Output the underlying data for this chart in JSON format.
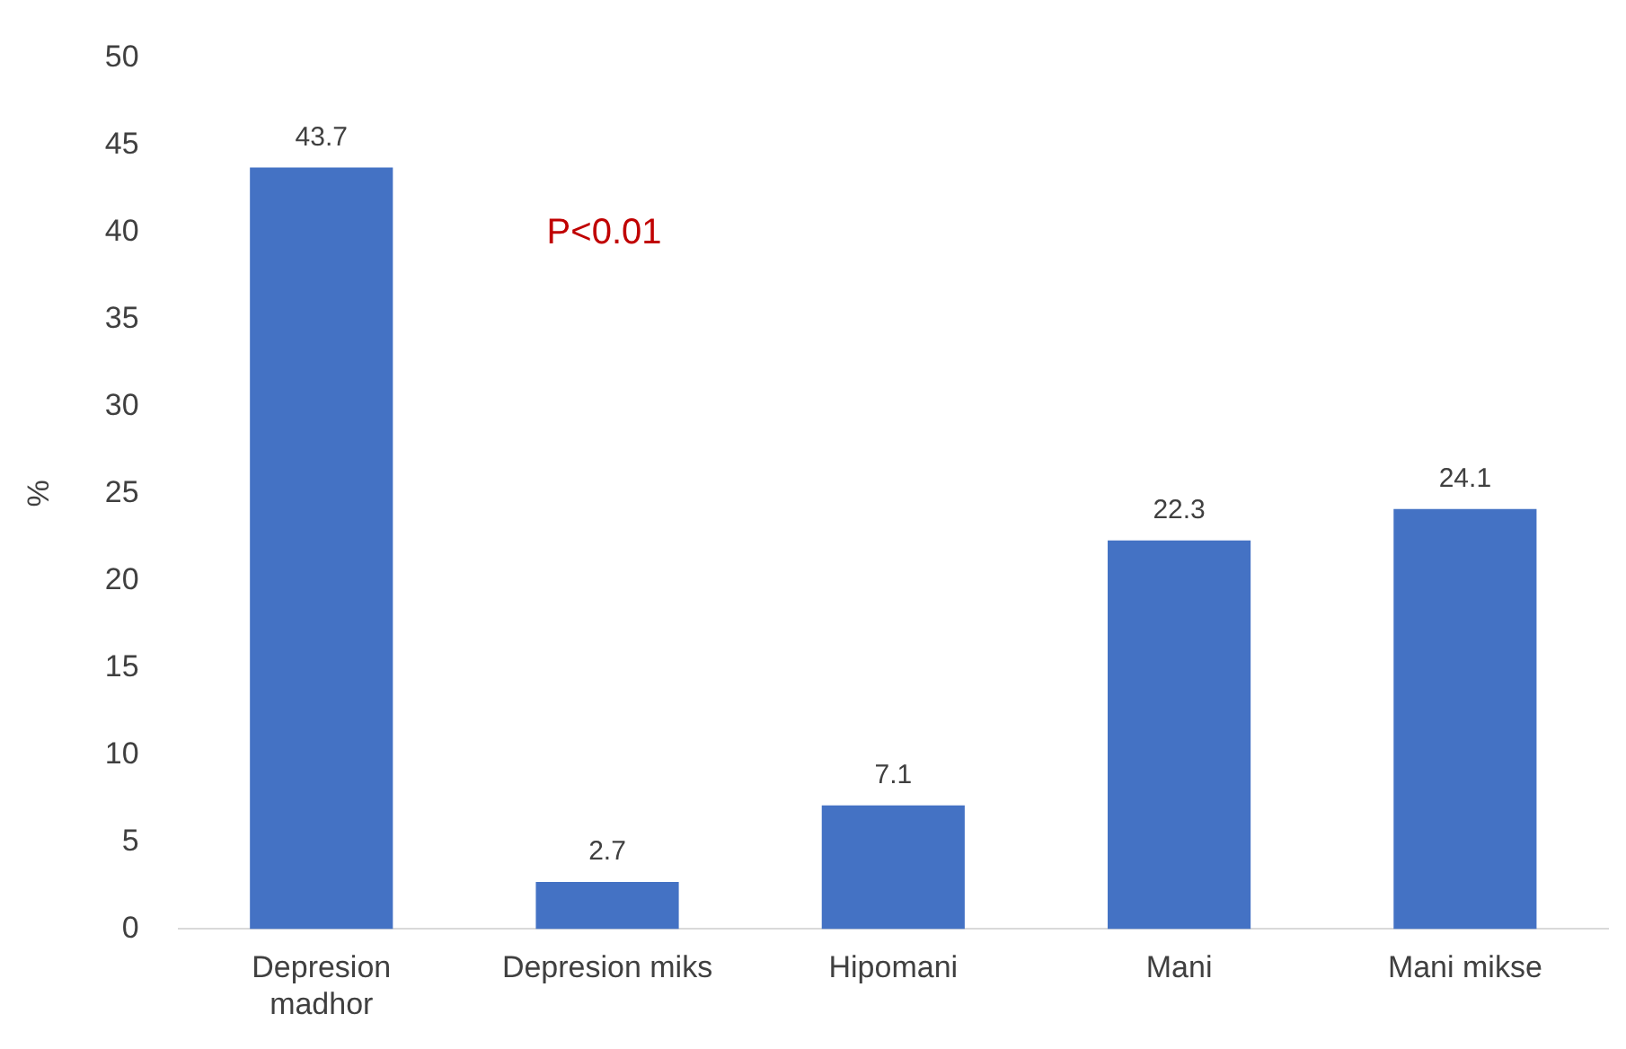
{
  "chart_data": {
    "type": "bar",
    "ylabel": "%",
    "categories": [
      "Depresion madhor",
      "Depresion miks",
      "Hipomani",
      "Mani",
      "Mani mikse"
    ],
    "values": [
      43.7,
      2.7,
      7.1,
      22.3,
      24.1
    ],
    "color": "#4472c4",
    "ylim": [
      0,
      50
    ],
    "yticks": [
      0,
      5,
      10,
      15,
      20,
      25,
      30,
      35,
      40,
      45,
      50
    ],
    "grid": false,
    "legend": false,
    "data_labels": true,
    "annotations": [
      "P<0.01"
    ]
  }
}
